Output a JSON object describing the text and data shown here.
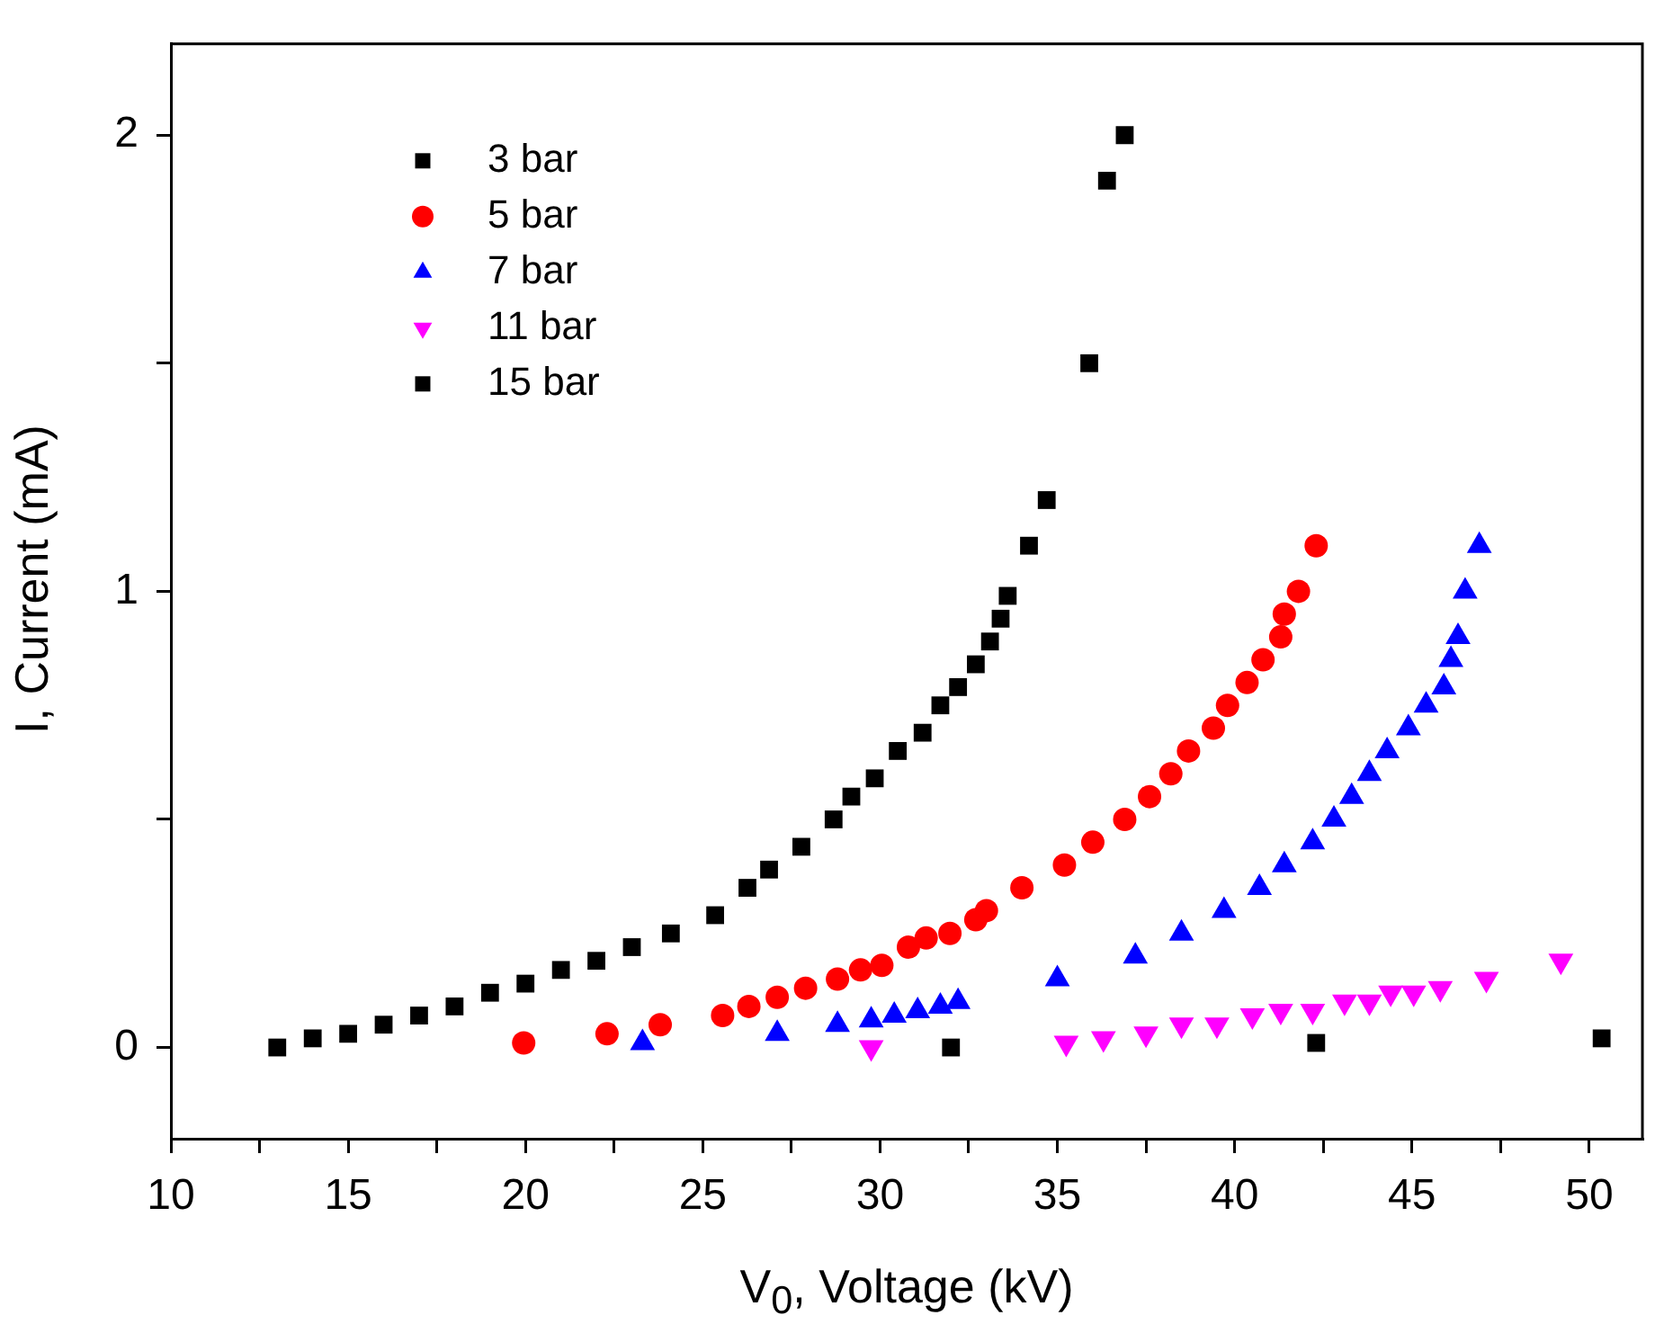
{
  "chart_data": {
    "type": "scatter",
    "xlabel": "V$_{0}$, Voltage (kV)",
    "ylabel": "I, Current (mA)",
    "xlim": [
      10,
      51.5
    ],
    "xticks": [
      10,
      {
        "value": 12.5,
        "label": null
      },
      15,
      {
        "value": 17.5,
        "label": null
      },
      20,
      {
        "value": 22.5,
        "label": null
      },
      25,
      {
        "value": 27.5,
        "label": null
      },
      30,
      {
        "value": 32.5,
        "label": null
      },
      35,
      {
        "value": 37.5,
        "label": null
      },
      40,
      {
        "value": 42.5,
        "label": null
      },
      45,
      {
        "value": 47.5,
        "label": null
      },
      50
    ],
    "ylim": [
      -0.2,
      2.2
    ],
    "yticks": [
      0,
      {
        "value": 0.5,
        "label": null
      },
      1,
      {
        "value": 1.5,
        "label": null
      },
      2
    ],
    "grid": false,
    "legend": "top left",
    "series": [
      {
        "name": "3 bar",
        "color": "#000000",
        "marker": "square",
        "x": [
          13.0,
          14.0,
          15,
          16,
          17,
          18,
          19,
          20,
          21,
          22,
          23,
          24.1,
          25.35,
          26.26,
          26.87,
          27.78,
          28.69,
          29.19,
          29.85,
          30.5,
          31.2,
          31.7,
          32.2,
          32.7,
          33.1,
          33.4,
          33.6,
          34.2,
          34.7,
          35.9,
          36.4,
          36.9
        ],
        "values": [
          0.0,
          0.02,
          0.03,
          0.05,
          0.07,
          0.09,
          0.12,
          0.14,
          0.17,
          0.19,
          0.22,
          0.25,
          0.29,
          0.35,
          0.39,
          0.44,
          0.5,
          0.55,
          0.59,
          0.65,
          0.69,
          0.75,
          0.79,
          0.84,
          0.89,
          0.94,
          0.99,
          1.1,
          1.2,
          1.5,
          1.9,
          2.0
        ]
      },
      {
        "name": "5 bar",
        "color": "#ff0000",
        "marker": "circle",
        "x": [
          19.95,
          22.3,
          23.8,
          25.56,
          26.3,
          27.1,
          27.9,
          28.8,
          29.45,
          30.05,
          30.8,
          31.3,
          31.97,
          32.7,
          33.0,
          34.0,
          35.2,
          36.0,
          36.9,
          37.6,
          38.2,
          38.7,
          39.4,
          39.8,
          40.35,
          40.8,
          41.3,
          41.4,
          41.8,
          42.3
        ],
        "values": [
          0.01,
          0.03,
          0.05,
          0.07,
          0.09,
          0.11,
          0.13,
          0.15,
          0.17,
          0.18,
          0.22,
          0.24,
          0.25,
          0.28,
          0.3,
          0.35,
          0.4,
          0.45,
          0.5,
          0.55,
          0.6,
          0.65,
          0.7,
          0.75,
          0.8,
          0.85,
          0.9,
          0.95,
          1.0,
          1.1
        ]
      },
      {
        "name": "7 bar",
        "color": "#0000ff",
        "marker": "triangle",
        "x": [
          23.3,
          27.1,
          28.8,
          29.75,
          30.4,
          31.06,
          31.7,
          32.2,
          35.0,
          37.2,
          38.5,
          39.7,
          40.7,
          41.4,
          42.2,
          42.8,
          43.3,
          43.8,
          44.3,
          44.9,
          45.4,
          45.9,
          46.1,
          46.3,
          46.5,
          46.9
        ],
        "values": [
          0.01,
          0.03,
          0.05,
          0.06,
          0.07,
          0.08,
          0.09,
          0.1,
          0.15,
          0.2,
          0.25,
          0.3,
          0.35,
          0.4,
          0.45,
          0.5,
          0.55,
          0.6,
          0.65,
          0.7,
          0.75,
          0.79,
          0.85,
          0.9,
          1.0,
          1.1
        ]
      },
      {
        "name": "11 bar",
        "color": "#ff00ff",
        "marker": "triangle-down",
        "x": [
          29.75,
          35.25,
          36.3,
          37.5,
          38.5,
          39.5,
          40.5,
          41.3,
          42.2,
          43.1,
          43.8,
          44.4,
          45.05,
          45.8,
          47.1,
          49.2
        ],
        "values": [
          0.0,
          0.01,
          0.02,
          0.03,
          0.05,
          0.05,
          0.07,
          0.08,
          0.08,
          0.1,
          0.1,
          0.12,
          0.12,
          0.13,
          0.15,
          0.19
        ]
      },
      {
        "name": "15 bar",
        "color": "#000000",
        "marker": "square",
        "x": [
          32.0,
          42.3,
          50.35
        ],
        "values": [
          0.0,
          0.01,
          0.02
        ]
      }
    ]
  }
}
